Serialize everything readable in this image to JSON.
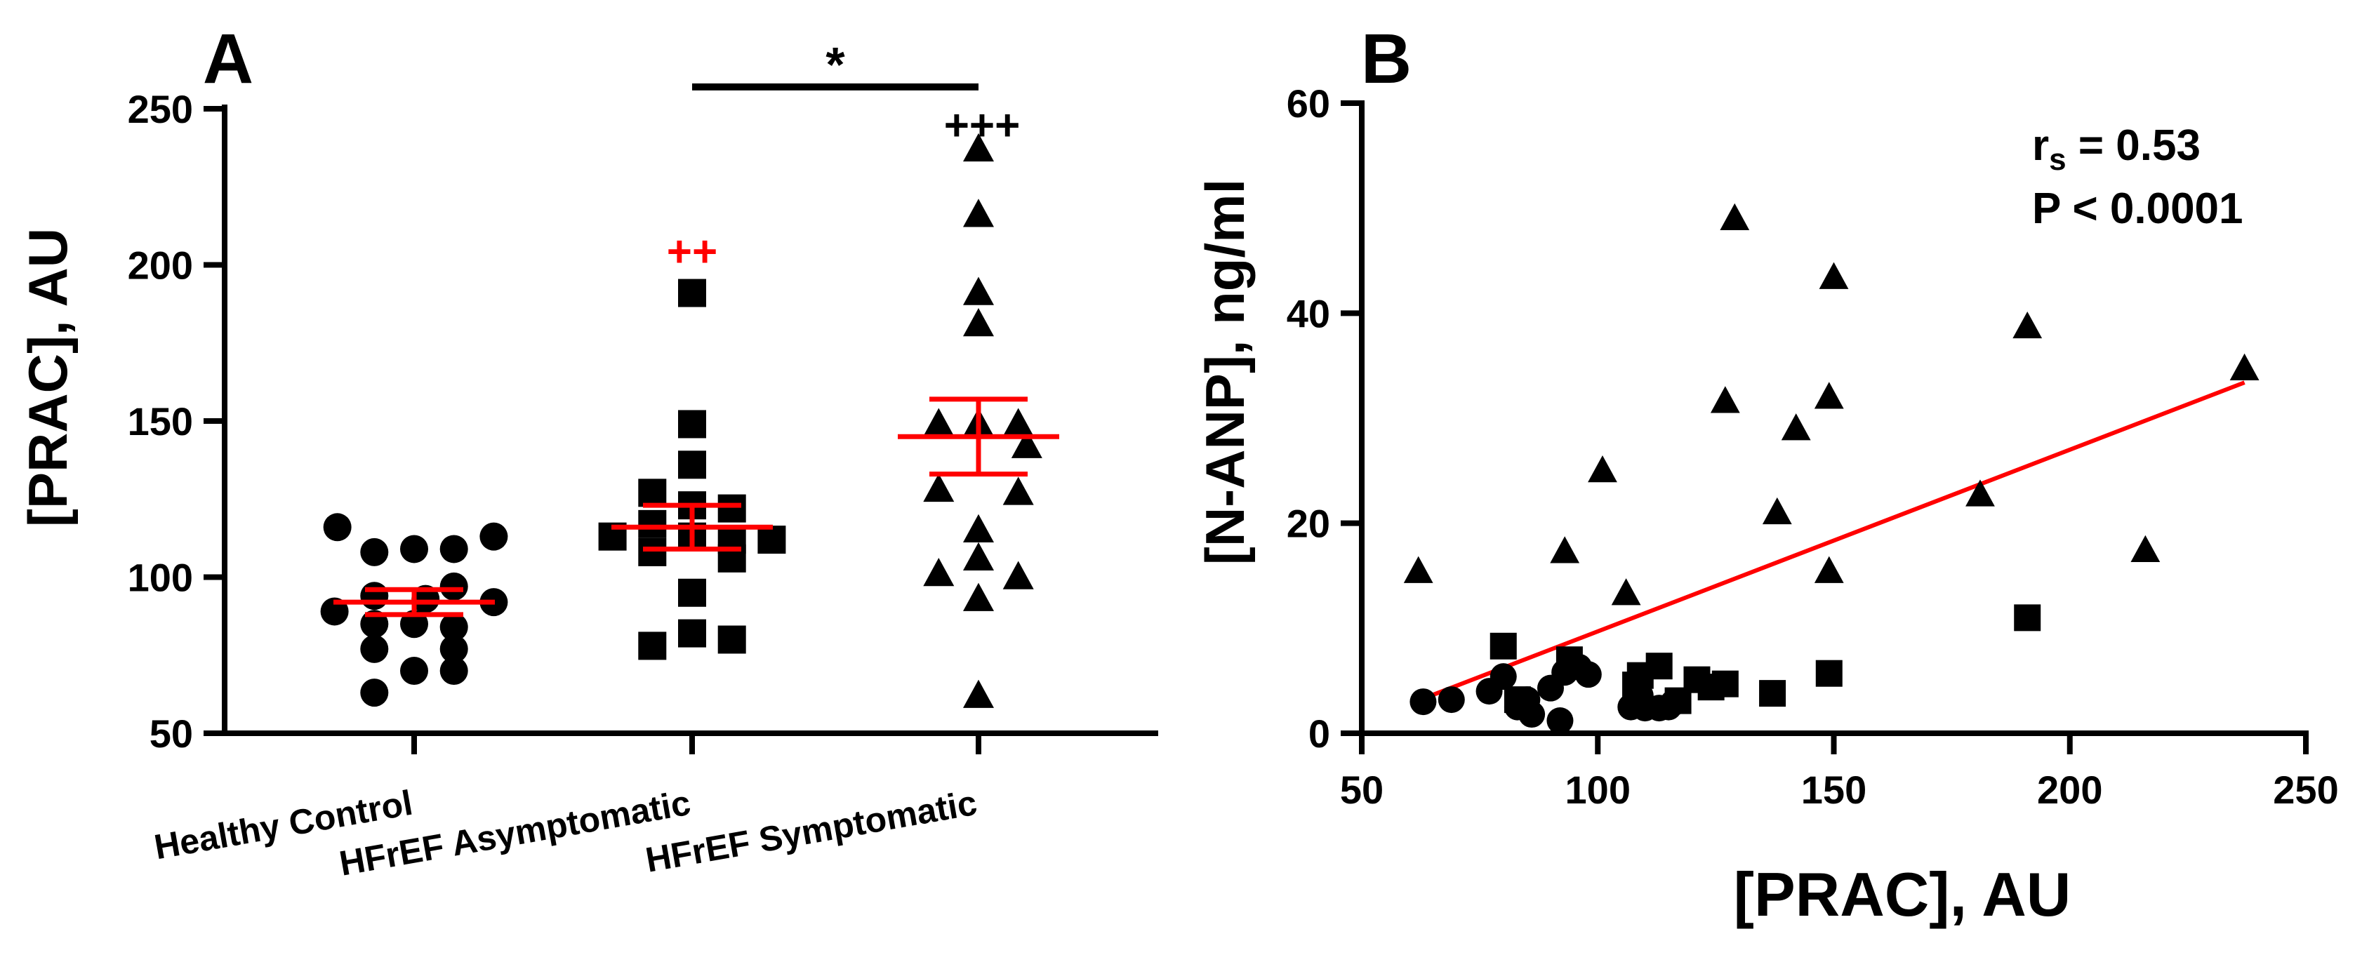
{
  "chart_data": [
    {
      "panel_label": "A",
      "type": "scatter",
      "ylabel": "[PRAC], AU",
      "ylim": [
        50,
        250
      ],
      "yticks": [
        50,
        100,
        150,
        200,
        250
      ],
      "categories": [
        "Healthy Control",
        "HFrEF Asymptomatic",
        "HFrEF Symptomatic"
      ],
      "groups": [
        {
          "name": "Healthy Control",
          "marker": "circle",
          "mean": 92,
          "sem_low": 88,
          "sem_high": 96,
          "points": [
            {
              "offset": -0.27,
              "value": 116
            },
            {
              "offset": -0.14,
              "value": 108
            },
            {
              "offset": 0.0,
              "value": 109
            },
            {
              "offset": 0.14,
              "value": 109
            },
            {
              "offset": 0.28,
              "value": 113
            },
            {
              "offset": -0.28,
              "value": 89
            },
            {
              "offset": 0.14,
              "value": 97
            },
            {
              "offset": -0.14,
              "value": 94
            },
            {
              "offset": 0.04,
              "value": 93
            },
            {
              "offset": 0.28,
              "value": 92
            },
            {
              "offset": -0.14,
              "value": 85
            },
            {
              "offset": 0.0,
              "value": 85
            },
            {
              "offset": 0.14,
              "value": 84
            },
            {
              "offset": -0.14,
              "value": 77
            },
            {
              "offset": 0.14,
              "value": 77
            },
            {
              "offset": 0.0,
              "value": 70
            },
            {
              "offset": 0.14,
              "value": 70
            },
            {
              "offset": -0.14,
              "value": 63
            }
          ]
        },
        {
          "name": "HFrEF Asymptomatic",
          "marker": "square",
          "mean": 116,
          "sem_low": 109,
          "sem_high": 123,
          "points": [
            {
              "offset": 0.0,
              "value": 191
            },
            {
              "offset": 0.0,
              "value": 149
            },
            {
              "offset": 0.0,
              "value": 136
            },
            {
              "offset": -0.14,
              "value": 127
            },
            {
              "offset": 0.0,
              "value": 123
            },
            {
              "offset": 0.14,
              "value": 122
            },
            {
              "offset": -0.14,
              "value": 117
            },
            {
              "offset": 0.0,
              "value": 113
            },
            {
              "offset": -0.28,
              "value": 113
            },
            {
              "offset": 0.28,
              "value": 112
            },
            {
              "offset": 0.14,
              "value": 112
            },
            {
              "offset": -0.14,
              "value": 108
            },
            {
              "offset": 0.14,
              "value": 106
            },
            {
              "offset": 0.0,
              "value": 95
            },
            {
              "offset": 0.0,
              "value": 82
            },
            {
              "offset": -0.14,
              "value": 78
            },
            {
              "offset": 0.14,
              "value": 80
            }
          ]
        },
        {
          "name": "HFrEF Symptomatic",
          "marker": "triangle",
          "mean": 145,
          "sem_low": 133,
          "sem_high": 157,
          "points": [
            {
              "offset": 0.0,
              "value": 237
            },
            {
              "offset": 0.0,
              "value": 216
            },
            {
              "offset": 0.0,
              "value": 191
            },
            {
              "offset": 0.0,
              "value": 181
            },
            {
              "offset": -0.14,
              "value": 149
            },
            {
              "offset": 0.14,
              "value": 149
            },
            {
              "offset": 0.0,
              "value": 149
            },
            {
              "offset": 0.17,
              "value": 142
            },
            {
              "offset": -0.14,
              "value": 128
            },
            {
              "offset": 0.14,
              "value": 127
            },
            {
              "offset": 0.0,
              "value": 115
            },
            {
              "offset": -0.14,
              "value": 101
            },
            {
              "offset": 0.14,
              "value": 100
            },
            {
              "offset": 0.0,
              "value": 106
            },
            {
              "offset": 0.0,
              "value": 93
            },
            {
              "offset": 0.0,
              "value": 62
            }
          ]
        }
      ],
      "annotations": [
        {
          "text": "++",
          "color": "#ff0000",
          "group": 1,
          "value": 204
        },
        {
          "text": "+++",
          "color": "#000000",
          "group": 2,
          "value": 245
        },
        {
          "text": "*",
          "color": "#000000",
          "between": [
            1,
            2
          ],
          "value": 257
        }
      ]
    },
    {
      "panel_label": "B",
      "type": "scatter",
      "xlabel": "[PRAC], AU",
      "ylabel": "[N-ANP], ng/ml",
      "xlim": [
        50,
        250
      ],
      "ylim": [
        0,
        60
      ],
      "xticks": [
        50,
        100,
        150,
        200,
        250
      ],
      "yticks": [
        0,
        20,
        40,
        60
      ],
      "stats_line1": "r",
      "stats_sub": "s",
      "stats_line1_rest": " = 0.53",
      "stats_line2": "P < 0.0001",
      "regression": {
        "x": [
          63,
          237
        ],
        "y": [
          3.3,
          33.4
        ],
        "color": "#ff0000"
      },
      "series": [
        {
          "name": "Healthy Control",
          "marker": "circle",
          "points": [
            [
              63,
              3
            ],
            [
              69,
              3.2
            ],
            [
              77,
              4
            ],
            [
              80,
              5.4
            ],
            [
              83,
              2.5
            ],
            [
              85,
              3.2
            ],
            [
              86,
              1.8
            ],
            [
              90,
              4.3
            ],
            [
              92,
              1.2
            ],
            [
              93,
              5.8
            ],
            [
              96,
              6.3
            ],
            [
              98,
              5.6
            ],
            [
              107,
              2.5
            ],
            [
              109,
              3.6
            ],
            [
              110,
              2.4
            ],
            [
              113,
              2.4
            ],
            [
              115,
              2.5
            ],
            [
              116,
              2.9
            ]
          ]
        },
        {
          "name": "HFrEF Asymptomatic",
          "marker": "square",
          "points": [
            [
              80,
              8.3
            ],
            [
              83,
              3.2
            ],
            [
              94,
              7
            ],
            [
              108,
              4.6
            ],
            [
              109,
              5.5
            ],
            [
              113,
              6.4
            ],
            [
              117,
              3.1
            ],
            [
              121,
              5.1
            ],
            [
              124,
              4.4
            ],
            [
              127,
              4.7
            ],
            [
              137,
              3.8
            ],
            [
              149,
              5.7
            ],
            [
              191,
              11
            ]
          ]
        },
        {
          "name": "HFrEF Symptomatic",
          "marker": "triangle",
          "points": [
            [
              62,
              15.4
            ],
            [
              93,
              17.3
            ],
            [
              101,
              25
            ],
            [
              106,
              13.3
            ],
            [
              127,
              31.6
            ],
            [
              129,
              49
            ],
            [
              138,
              21
            ],
            [
              142,
              29
            ],
            [
              149,
              32
            ],
            [
              149,
              15.4
            ],
            [
              150,
              43.4
            ],
            [
              181,
              22.7
            ],
            [
              191,
              38.7
            ],
            [
              216,
              17.4
            ],
            [
              237,
              34.7
            ]
          ]
        }
      ]
    }
  ]
}
